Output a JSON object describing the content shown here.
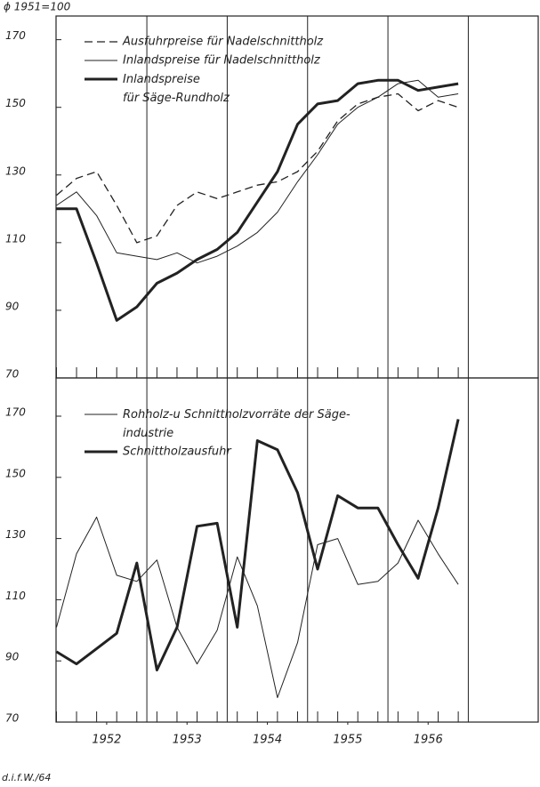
{
  "chart_data": [
    {
      "type": "line",
      "note": "ϕ 1951=100",
      "x": [
        1951.875,
        1952.125,
        1952.375,
        1952.625,
        1952.875,
        1953.125,
        1953.375,
        1953.625,
        1953.875,
        1954.125,
        1954.375,
        1954.625,
        1954.875,
        1955.125,
        1955.375,
        1955.625,
        1955.875,
        1956.125,
        1956.375,
        1956.625,
        1956.875
      ],
      "xlim": [
        1951.87,
        1957.87
      ],
      "xgrid": [
        1953,
        1954,
        1955,
        1956,
        1957
      ],
      "ylim": [
        70,
        177
      ],
      "yticks": [
        70,
        90,
        110,
        130,
        150,
        170
      ],
      "series": [
        {
          "name": "Ausfuhrpreise für Nadelschnittholz",
          "color": "#222",
          "style": "dashed",
          "values": [
            124,
            129,
            131,
            121,
            110,
            112,
            121,
            125,
            123,
            125,
            127,
            128,
            131,
            137,
            146,
            151,
            153,
            154,
            149,
            152,
            150
          ]
        },
        {
          "name": "Inlandspreise für Nadelschnittholz",
          "color": "#222",
          "style": "thin",
          "values": [
            121,
            125,
            118,
            107,
            106,
            105,
            107,
            104,
            106,
            109,
            113,
            119,
            128,
            136,
            145,
            150,
            153,
            157,
            158,
            153,
            154
          ]
        },
        {
          "name": "Inlandspreise\nfür Säge-Rundholz",
          "color": "#222",
          "style": "thick",
          "values": [
            120,
            120,
            104,
            87,
            91,
            98,
            101,
            105,
            108,
            113,
            122,
            131,
            145,
            151,
            152,
            157,
            158,
            158,
            155,
            156,
            157
          ]
        }
      ]
    },
    {
      "type": "line",
      "source": "d.i.f.W./64",
      "x": [
        1951.875,
        1952.125,
        1952.375,
        1952.625,
        1952.875,
        1953.125,
        1953.375,
        1953.625,
        1953.875,
        1954.125,
        1954.375,
        1954.625,
        1954.875,
        1955.125,
        1955.375,
        1955.625,
        1955.875,
        1956.125,
        1956.375,
        1956.625,
        1956.875
      ],
      "xlim": [
        1951.87,
        1957.87
      ],
      "xgrid": [
        1953,
        1954,
        1955,
        1956,
        1957
      ],
      "xticks": [
        {
          "value": 1952.5,
          "label": "1952"
        },
        {
          "value": 1953.5,
          "label": "1953"
        },
        {
          "value": 1954.5,
          "label": "1954"
        },
        {
          "value": 1955.5,
          "label": "1955"
        },
        {
          "value": 1956.5,
          "label": "1956"
        }
      ],
      "ylim": [
        70,
        182.5
      ],
      "yticks": [
        70,
        90,
        110,
        130,
        150,
        170
      ],
      "series": [
        {
          "name": "Rohholz-u Schnittholzvorräte der Säge-\nindustrie",
          "color": "#222",
          "style": "thin",
          "values": [
            101,
            125,
            137,
            118,
            116,
            123,
            101,
            89,
            100,
            124,
            108,
            78,
            96,
            128,
            130,
            115,
            116,
            122,
            136,
            125,
            115
          ]
        },
        {
          "name": "Schnittholzausfuhr",
          "color": "#222",
          "style": "thick",
          "values": [
            93,
            89,
            94,
            99,
            122,
            87,
            101,
            134,
            135,
            101,
            162,
            159,
            145,
            120,
            144,
            140,
            140,
            128,
            117,
            140,
            169
          ]
        }
      ]
    }
  ]
}
